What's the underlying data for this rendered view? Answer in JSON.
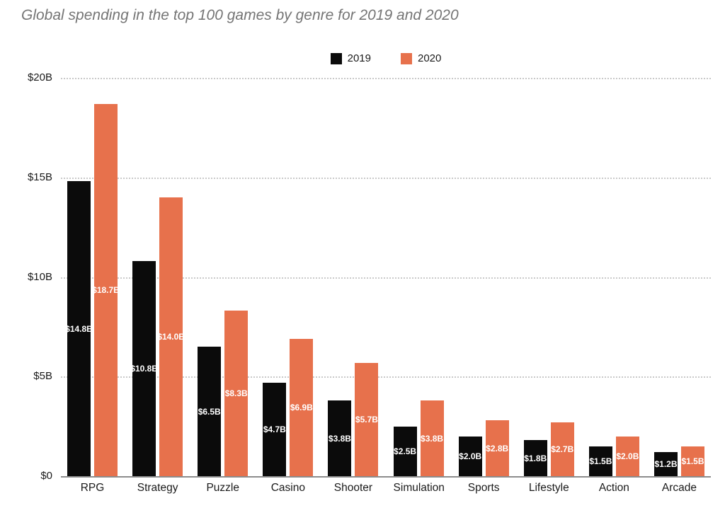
{
  "title": "Global spending in the top 100 games by genre for 2019 and 2020",
  "legend": {
    "items": [
      {
        "label": "2019",
        "color": "#0b0b0b"
      },
      {
        "label": "2020",
        "color": "#e7714c"
      }
    ]
  },
  "chart_data": {
    "type": "bar",
    "title": "Global spending in the top 100 games by genre for 2019 and 2020",
    "categories": [
      "RPG",
      "Strategy",
      "Puzzle",
      "Casino",
      "Shooter",
      "Simulation",
      "Sports",
      "Lifestyle",
      "Action",
      "Arcade"
    ],
    "series": [
      {
        "name": "2019",
        "color": "#0b0b0b",
        "values": [
          14.8,
          10.8,
          6.5,
          4.7,
          3.8,
          2.5,
          2.0,
          1.8,
          1.5,
          1.2
        ],
        "labels": [
          "$14.8B",
          "$10.8B",
          "$6.5B",
          "$4.7B",
          "$3.8B",
          "$2.5B",
          "$2.0B",
          "$1.8B",
          "$1.5B",
          "$1.2B"
        ]
      },
      {
        "name": "2020",
        "color": "#e7714c",
        "values": [
          18.7,
          14.0,
          8.3,
          6.9,
          5.7,
          3.8,
          2.8,
          2.7,
          2.0,
          1.5
        ],
        "labels": [
          "$18.7B",
          "$14.0B",
          "$8.3B",
          "$6.9B",
          "$5.7B",
          "$3.8B",
          "$2.8B",
          "$2.7B",
          "$2.0B",
          "$1.5B"
        ]
      }
    ],
    "xlabel": "",
    "ylabel": "",
    "ylim": [
      0,
      20
    ],
    "y_ticks": [
      {
        "label": "$20B",
        "value": 20
      },
      {
        "label": "$15B",
        "value": 15
      },
      {
        "label": "$10B",
        "value": 10
      },
      {
        "label": "$5B",
        "value": 5
      },
      {
        "label": "$0",
        "value": 0
      }
    ],
    "grid": "horizontal-dotted",
    "legend_position": "top-center",
    "value_labels": "white, bold, centered inside bars"
  }
}
